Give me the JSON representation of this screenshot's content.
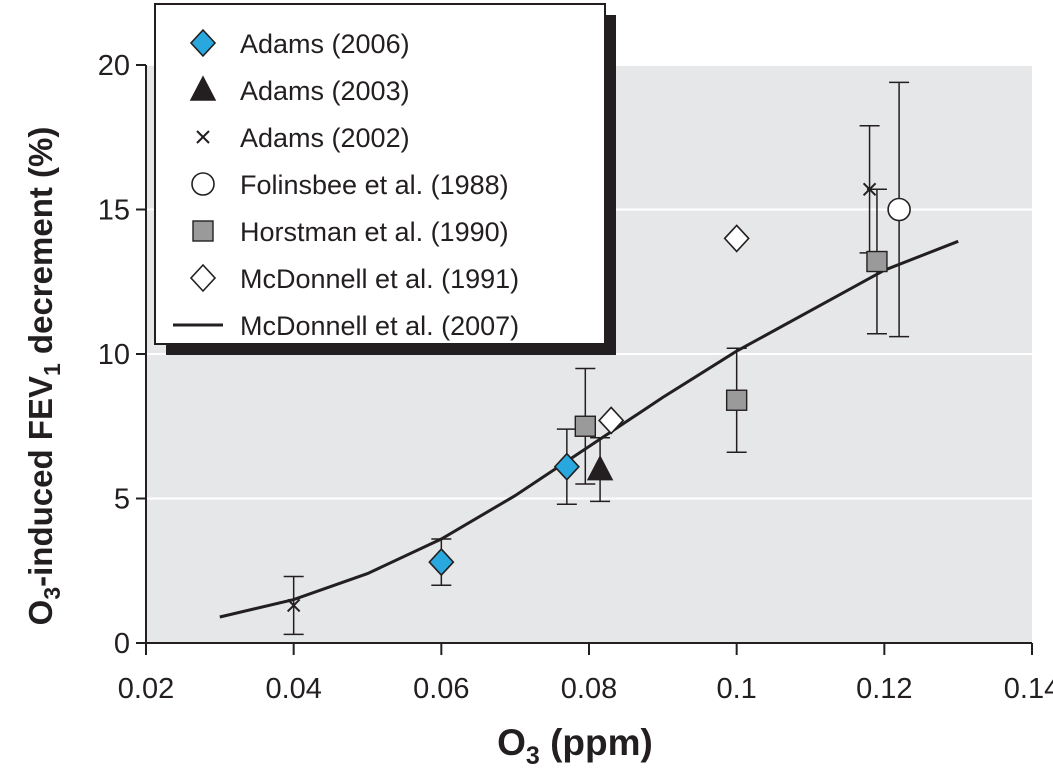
{
  "chart_data": {
    "type": "scatter",
    "xlabel": {
      "main": "O",
      "sub": "3",
      "rest": " (ppm)"
    },
    "ylabel": {
      "part1": "O",
      "sub1": "3",
      "part2": "-induced FEV",
      "sub2": "1",
      "part3": " decrement (%)"
    },
    "xlim": [
      0.02,
      0.14
    ],
    "ylim": [
      0,
      20
    ],
    "xticks": [
      {
        "v": 0.02,
        "label": "0.02"
      },
      {
        "v": 0.04,
        "label": "0.04"
      },
      {
        "v": 0.06,
        "label": "0.06"
      },
      {
        "v": 0.08,
        "label": "0.08"
      },
      {
        "v": 0.1,
        "label": "0.1"
      },
      {
        "v": 0.12,
        "label": "0.12"
      },
      {
        "v": 0.14,
        "label": "0.14"
      }
    ],
    "yticks": [
      {
        "v": 0,
        "label": "0"
      },
      {
        "v": 5,
        "label": "5"
      },
      {
        "v": 10,
        "label": "10"
      },
      {
        "v": 15,
        "label": "15"
      },
      {
        "v": 20,
        "label": "20"
      }
    ],
    "grid": "horizontal",
    "background": "#e6e7e8",
    "legend_position": "top-left",
    "series": [
      {
        "name": "Adams (2006)",
        "marker": "diamond",
        "fill": "#29a8e0",
        "stroke": "#231f20",
        "points": [
          {
            "x": 0.06,
            "y": 2.8,
            "err": 0.8
          },
          {
            "x": 0.077,
            "y": 6.1,
            "err": 1.3
          }
        ]
      },
      {
        "name": "Adams (2003)",
        "marker": "triangle",
        "fill": "#231f20",
        "stroke": "#231f20",
        "points": [
          {
            "x": 0.0815,
            "y": 6.0,
            "err": 1.1
          }
        ]
      },
      {
        "name": "Adams (2002)",
        "marker": "x",
        "fill": "none",
        "stroke": "#231f20",
        "points": [
          {
            "x": 0.04,
            "y": 1.3,
            "err": 1.0
          },
          {
            "x": 0.118,
            "y": 15.7,
            "err": 2.2
          }
        ]
      },
      {
        "name": "Folinsbee et al. (1988)",
        "marker": "circle",
        "fill": "#ffffff",
        "stroke": "#231f20",
        "points": [
          {
            "x": 0.122,
            "y": 15.0,
            "err": 4.4
          }
        ]
      },
      {
        "name": "Horstman et al. (1990)",
        "marker": "square",
        "fill": "#9a9a9a",
        "stroke": "#231f20",
        "points": [
          {
            "x": 0.0795,
            "y": 7.5,
            "err": 2.0
          },
          {
            "x": 0.1,
            "y": 8.4,
            "err": 1.8
          },
          {
            "x": 0.119,
            "y": 13.2,
            "err": 2.5
          }
        ]
      },
      {
        "name": "McDonnell et al. (1991)",
        "marker": "open-diamond",
        "fill": "#ffffff",
        "stroke": "#231f20",
        "points": [
          {
            "x": 0.083,
            "y": 7.7
          },
          {
            "x": 0.1,
            "y": 14.0
          }
        ]
      },
      {
        "name": "McDonnell et al. (2007)",
        "marker": "line",
        "stroke": "#231f20",
        "points": [
          {
            "x": 0.03,
            "y": 0.9
          },
          {
            "x": 0.04,
            "y": 1.5
          },
          {
            "x": 0.05,
            "y": 2.4
          },
          {
            "x": 0.06,
            "y": 3.6
          },
          {
            "x": 0.07,
            "y": 5.1
          },
          {
            "x": 0.08,
            "y": 6.8
          },
          {
            "x": 0.09,
            "y": 8.5
          },
          {
            "x": 0.1,
            "y": 10.1
          },
          {
            "x": 0.11,
            "y": 11.5
          },
          {
            "x": 0.12,
            "y": 12.9
          },
          {
            "x": 0.13,
            "y": 13.9
          }
        ]
      }
    ]
  }
}
